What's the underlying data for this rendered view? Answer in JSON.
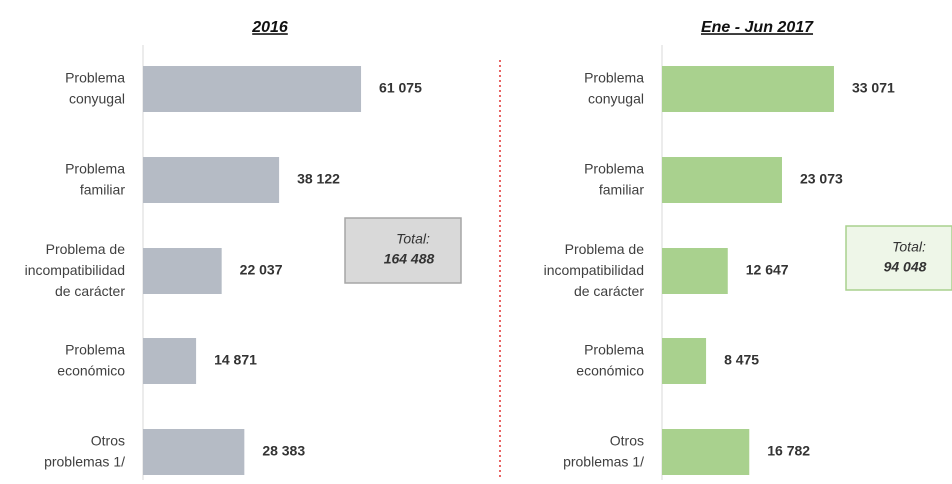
{
  "chart_data": [
    {
      "type": "hbar",
      "title": "2016",
      "categories": [
        "Problema\nconyugal",
        "Problema\nfamiliar",
        "Problema de\nincompatibilidad\nde carácter",
        "Problema\neconómico",
        "Otros\nproblemas 1/"
      ],
      "values": [
        61075,
        38122,
        22037,
        14871,
        28383
      ],
      "value_labels": [
        "61 075",
        "38 122",
        "22 037",
        "14 871",
        "28 383"
      ],
      "color": "#b5bbc5",
      "label_color": "#333333",
      "xlim": [
        0,
        100000
      ],
      "total": {
        "label": "Total:",
        "value": 164488,
        "value_label": "164 488"
      }
    },
    {
      "type": "hbar",
      "title": "Ene - Jun 2017",
      "categories": [
        "Problema\nconyugal",
        "Problema\nfamiliar",
        "Problema de\nincompatibilidad\nde carácter",
        "Problema\neconómico",
        "Otros\nproblemas 1/"
      ],
      "values": [
        33071,
        23073,
        12647,
        8475,
        16782
      ],
      "value_labels": [
        "33 071",
        "23 073",
        "12 647",
        "8 475",
        "16 782"
      ],
      "color": "#a9d18e",
      "label_color": "#375623",
      "xlim": [
        0,
        50000
      ],
      "total": {
        "label": "Total:",
        "value": 94048,
        "value_label": "94 048"
      }
    }
  ]
}
